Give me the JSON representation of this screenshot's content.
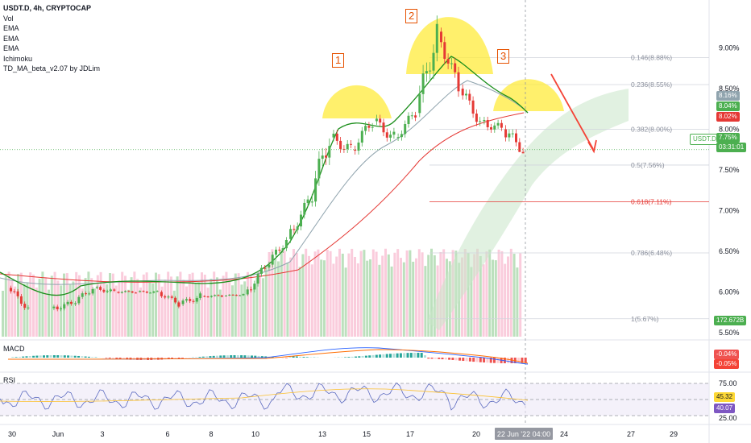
{
  "header": {
    "symbol_line": "USDT.D, 4h, CRYPTOCAP",
    "indicators": [
      "Vol",
      "EMA",
      "EMA",
      "EMA",
      "Ichimoku",
      "TD_MA_beta_v2.07 by JDLim"
    ]
  },
  "panes": {
    "macd_title": "MACD",
    "rsi_title": "RSI"
  },
  "colors": {
    "up": "#4caf50",
    "down": "#e53935",
    "ema_fast": "#1b8e1b",
    "ema_mid": "#90a4ae",
    "ema_slow": "#e53935",
    "cloud": "#c8e6c9",
    "fib_line": "#d1d4dc",
    "fib_618": "#e53935",
    "price_tag": "#4caf50",
    "annotation": "#e65100",
    "arrow": "#f44336",
    "highlight": "#ffeb3b"
  },
  "price_axis": {
    "labels": [
      "9.00%",
      "8.50%",
      "8.00%",
      "7.50%",
      "7.00%",
      "6.50%",
      "6.00%",
      "5.50%"
    ],
    "tags": {
      "ema1": "8.16%",
      "ema2": "8.04%",
      "ema3": "8.02%",
      "current": "7.75%",
      "countdown": "03:31:01",
      "symbol": "USDT.D",
      "volume": "172.672B"
    }
  },
  "macd_axis": {
    "tag1": "-0.04%",
    "tag2": "-0.05%"
  },
  "rsi_axis": {
    "labels": [
      "75.00",
      "25.00"
    ],
    "tag1": "45.32",
    "tag2": "40.07"
  },
  "time_axis": {
    "labels": [
      "30",
      "Jun",
      "3",
      "6",
      "8",
      "10",
      "13",
      "15",
      "17",
      "20",
      "24",
      "27",
      "29"
    ],
    "cursor_label": "22 Jun '22   04:00"
  },
  "annotations": {
    "pattern_labels": [
      "1",
      "2",
      "3"
    ],
    "fib_levels": [
      {
        "label": "0.146(8.88%)",
        "value": 8.88
      },
      {
        "label": "0.236(8.55%)",
        "value": 8.55
      },
      {
        "label": "0.382(8.00%)",
        "value": 8.0
      },
      {
        "label": "0.5(7.56%)",
        "value": 7.56
      },
      {
        "label": "0.618(7.11%)",
        "value": 7.11
      },
      {
        "label": "0.786(6.48%)",
        "value": 6.48
      },
      {
        "label": "1(5.67%)",
        "value": 5.67
      }
    ]
  },
  "chart_data": {
    "type": "candlestick",
    "title": "USDT.D, 4h, CRYPTOCAP",
    "ylim": [
      5.45,
      9.55
    ],
    "x_range": [
      "2022-05-30",
      "2022-06-29"
    ],
    "ohlc_daily": [
      {
        "date": "2022-05-30",
        "o": 6.05,
        "h": 6.1,
        "l": 5.75,
        "c": 5.8
      },
      {
        "date": "2022-06-01",
        "o": 5.8,
        "h": 5.95,
        "l": 5.65,
        "c": 5.85
      },
      {
        "date": "2022-06-02",
        "o": 5.85,
        "h": 6.1,
        "l": 5.8,
        "c": 6.05
      },
      {
        "date": "2022-06-03",
        "o": 6.05,
        "h": 6.15,
        "l": 5.95,
        "c": 6.0
      },
      {
        "date": "2022-06-04",
        "o": 6.0,
        "h": 6.05,
        "l": 5.95,
        "c": 6.0
      },
      {
        "date": "2022-06-05",
        "o": 6.0,
        "h": 6.05,
        "l": 5.95,
        "c": 6.0
      },
      {
        "date": "2022-06-06",
        "o": 6.0,
        "h": 6.05,
        "l": 5.8,
        "c": 5.85
      },
      {
        "date": "2022-06-07",
        "o": 5.85,
        "h": 6.1,
        "l": 5.8,
        "c": 5.95
      },
      {
        "date": "2022-06-08",
        "o": 5.95,
        "h": 6.0,
        "l": 5.9,
        "c": 5.95
      },
      {
        "date": "2022-06-09",
        "o": 5.95,
        "h": 6.0,
        "l": 5.92,
        "c": 5.97
      },
      {
        "date": "2022-06-10",
        "o": 5.97,
        "h": 6.4,
        "l": 5.95,
        "c": 6.3
      },
      {
        "date": "2022-06-11",
        "o": 6.3,
        "h": 6.7,
        "l": 6.25,
        "c": 6.65
      },
      {
        "date": "2022-06-12",
        "o": 6.65,
        "h": 7.2,
        "l": 6.6,
        "c": 7.1
      },
      {
        "date": "2022-06-13",
        "o": 7.1,
        "h": 8.2,
        "l": 7.05,
        "c": 7.9
      },
      {
        "date": "2022-06-14",
        "o": 7.9,
        "h": 8.2,
        "l": 7.6,
        "c": 7.75
      },
      {
        "date": "2022-06-15",
        "o": 7.75,
        "h": 8.25,
        "l": 7.65,
        "c": 8.1
      },
      {
        "date": "2022-06-16",
        "o": 8.1,
        "h": 8.3,
        "l": 7.7,
        "c": 7.9
      },
      {
        "date": "2022-06-17",
        "o": 7.9,
        "h": 8.4,
        "l": 7.85,
        "c": 8.2
      },
      {
        "date": "2022-06-18",
        "o": 8.2,
        "h": 9.45,
        "l": 8.15,
        "c": 9.2
      },
      {
        "date": "2022-06-19",
        "o": 9.2,
        "h": 9.25,
        "l": 8.4,
        "c": 8.5
      },
      {
        "date": "2022-06-20",
        "o": 8.5,
        "h": 8.6,
        "l": 7.95,
        "c": 8.1
      },
      {
        "date": "2022-06-21",
        "o": 8.1,
        "h": 8.3,
        "l": 7.8,
        "c": 8.0
      },
      {
        "date": "2022-06-22",
        "o": 8.0,
        "h": 8.35,
        "l": 7.72,
        "c": 7.75
      }
    ],
    "current_price": 7.75,
    "macd": {
      "values": [
        -0.04,
        -0.05
      ]
    },
    "rsi": {
      "values": [
        45.32,
        40.07
      ],
      "bands": [
        75,
        25
      ]
    }
  }
}
